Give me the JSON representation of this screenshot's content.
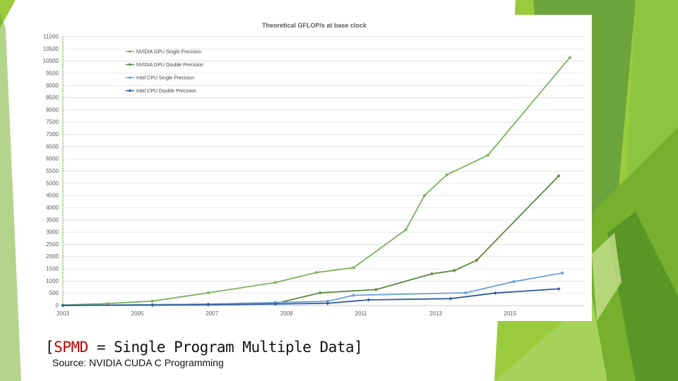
{
  "caption": {
    "open": "[",
    "acronym": "SPMD",
    "rest": " = Single Program Multiple  Data]"
  },
  "source": "Source: NVIDIA CUDA C Programming",
  "theme_colors": {
    "green_light": "#9acb3c",
    "green_mid": "#76b02e",
    "green_dark": "#4e8a24"
  },
  "chart_data": {
    "type": "line",
    "title": "Theoretical GFLOP/s at base clock",
    "xlabel": "",
    "ylabel": "",
    "xlim": [
      2003,
      2017
    ],
    "ylim": [
      0,
      11000
    ],
    "x_ticks": [
      2003,
      2005,
      2007,
      2009,
      2011,
      2013,
      2015
    ],
    "y_ticks": [
      0,
      500,
      1000,
      1500,
      2000,
      2500,
      3000,
      3500,
      4000,
      4500,
      5000,
      5500,
      6000,
      6500,
      7000,
      7500,
      8000,
      8500,
      9000,
      9500,
      10000,
      10500,
      11000
    ],
    "grid": true,
    "legend_position": "top-left",
    "series": [
      {
        "name": "NVIDIA GPU Single Precision",
        "color": "#7bb35c",
        "marker": "circle",
        "x": [
          2003,
          2004.2,
          2005.4,
          2006.9,
          2008.7,
          2009.8,
          2010.8,
          2012.2,
          2012.7,
          2013.3,
          2014.4,
          2016.6
        ],
        "y": [
          20,
          80,
          180,
          520,
          940,
          1350,
          1550,
          3100,
          4500,
          5350,
          6150,
          10150
        ]
      },
      {
        "name": "NVIDIA GPU Double Precision",
        "color": "#5a8a3c",
        "marker": "diamond",
        "x": [
          2003,
          2008.7,
          2009.9,
          2011.4,
          2012.9,
          2013.5,
          2014.1,
          2016.3
        ],
        "y": [
          0,
          80,
          520,
          650,
          1300,
          1430,
          1850,
          5300
        ]
      },
      {
        "name": "Intel CPU Single Precision",
        "color": "#6a9fd1",
        "marker": "circle",
        "x": [
          2003,
          2005.4,
          2006.9,
          2008.7,
          2010.1,
          2010.8,
          2013.8,
          2015.1,
          2016.4
        ],
        "y": [
          10,
          30,
          60,
          120,
          170,
          420,
          520,
          980,
          1330
        ]
      },
      {
        "name": "Intel CPU Double Precision",
        "color": "#2f5a9e",
        "marker": "diamond",
        "x": [
          2003,
          2005.4,
          2006.9,
          2008.7,
          2010.1,
          2011.2,
          2013.4,
          2014.6,
          2016.3
        ],
        "y": [
          5,
          15,
          30,
          60,
          90,
          230,
          280,
          510,
          680
        ]
      }
    ]
  }
}
